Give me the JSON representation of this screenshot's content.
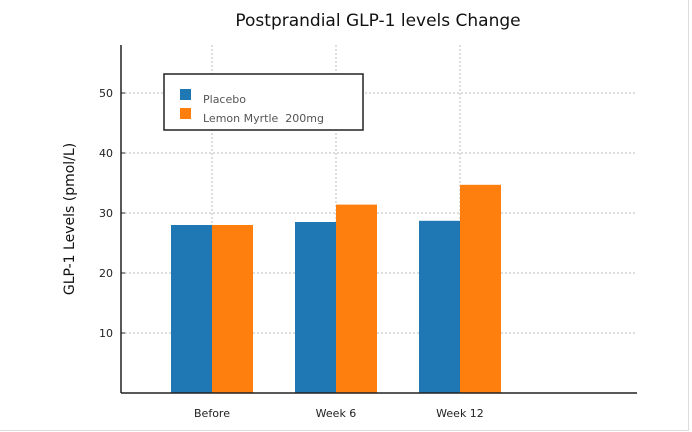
{
  "chart_data": {
    "type": "bar",
    "title": "Postprandial GLP-1 levels Change",
    "xlabel": "",
    "ylabel": "GLP-1 Levels (pmol/L)",
    "categories": [
      "Before",
      "Week 6",
      "Week 12"
    ],
    "series": [
      {
        "name": "Placebo",
        "color": "#1f77b4",
        "values": [
          28.0,
          28.5,
          28.7
        ]
      },
      {
        "name": "Lemon Myrtle  200mg",
        "color": "#ff7f0e",
        "values": [
          28.0,
          31.4,
          34.7
        ]
      }
    ],
    "ylim": [
      0,
      58
    ],
    "yticks": [
      10,
      20,
      30,
      40,
      50
    ],
    "grid": true,
    "legend_position": "top-left"
  }
}
